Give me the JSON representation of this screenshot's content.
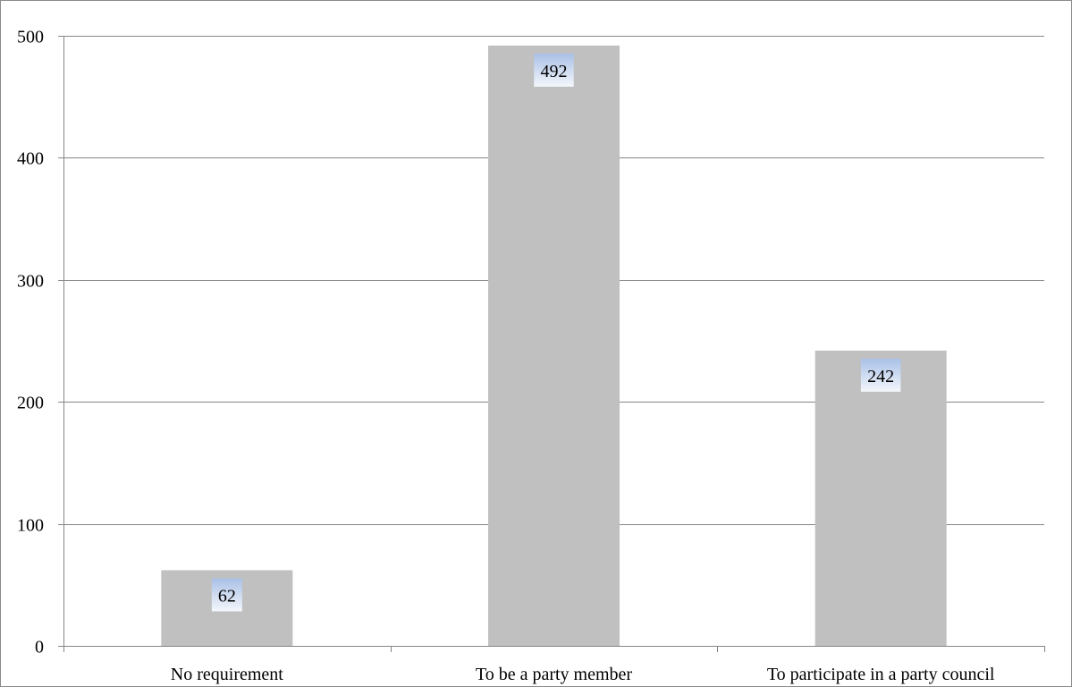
{
  "chart_data": {
    "type": "bar",
    "categories": [
      "No requirement",
      "To be a party member",
      "To participate in a party council"
    ],
    "values": [
      62,
      492,
      242
    ],
    "title": "",
    "xlabel": "",
    "ylabel": "",
    "ylim": [
      0,
      500
    ],
    "yticks": [
      "0",
      "100",
      "200",
      "300",
      "400",
      "500"
    ],
    "data_labels": [
      "62",
      "492",
      "242"
    ],
    "grid": true,
    "legend": "none",
    "colors": {
      "bar": "#c0c0c0",
      "gridline": "#868686",
      "axis": "#868686",
      "label_box_top": "#a9c0e6",
      "label_box_bottom": "#f4f7fc"
    }
  }
}
